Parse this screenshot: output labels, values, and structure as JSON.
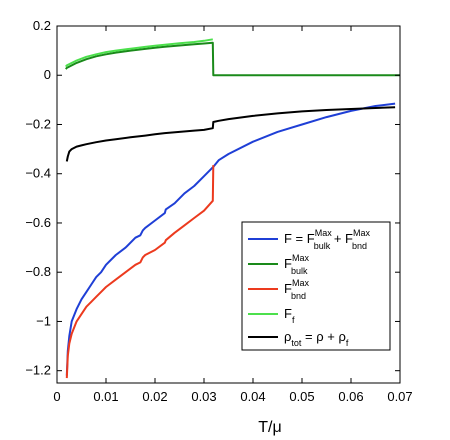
{
  "chart_data": {
    "type": "line",
    "xlabel": "T/μ",
    "ylabel": "",
    "xlim": [
      0,
      0.07
    ],
    "ylim": [
      -1.25,
      0.2
    ],
    "x_ticks": [
      "0",
      "0.01",
      "0.02",
      "0.03",
      "0.04",
      "0.05",
      "0.06",
      "0.07"
    ],
    "x_tick_values": [
      0,
      0.01,
      0.02,
      0.03,
      0.04,
      0.05,
      0.06,
      0.07
    ],
    "y_ticks": [
      "0.2",
      "0",
      "−0.2",
      "−0.4",
      "−0.6",
      "−0.8",
      "−1",
      "−1.2"
    ],
    "y_tick_values": [
      0.2,
      0,
      -0.2,
      -0.4,
      -0.6,
      -0.8,
      -1,
      -1.2
    ],
    "grid": false,
    "legend_position": "bottom-right",
    "series": [
      {
        "name": "F = F^Max_bulk + F^Max_bnd",
        "color": "#1f3fd6",
        "x": [
          0.002,
          0.0022,
          0.0025,
          0.003,
          0.004,
          0.005,
          0.006,
          0.007,
          0.008,
          0.009,
          0.01,
          0.012,
          0.014,
          0.016,
          0.017,
          0.0175,
          0.018,
          0.02,
          0.022,
          0.0222,
          0.024,
          0.026,
          0.028,
          0.03,
          0.032,
          0.033,
          0.035,
          0.04,
          0.045,
          0.05,
          0.055,
          0.06,
          0.065,
          0.069
        ],
        "y": [
          -1.22,
          -1.12,
          -1.06,
          -1.0,
          -0.95,
          -0.91,
          -0.88,
          -0.85,
          -0.82,
          -0.8,
          -0.77,
          -0.73,
          -0.7,
          -0.66,
          -0.65,
          -0.63,
          -0.62,
          -0.59,
          -0.56,
          -0.545,
          -0.52,
          -0.48,
          -0.45,
          -0.41,
          -0.37,
          -0.345,
          -0.32,
          -0.27,
          -0.23,
          -0.2,
          -0.17,
          -0.145,
          -0.125,
          -0.115
        ]
      },
      {
        "name": "F^Max_bulk",
        "color": "#1a8a1a",
        "x": [
          0.0018,
          0.002,
          0.004,
          0.006,
          0.008,
          0.01,
          0.012,
          0.015,
          0.018,
          0.02,
          0.022,
          0.025,
          0.028,
          0.03,
          0.0318,
          0.0319,
          0.033,
          0.04,
          0.05,
          0.06,
          0.07
        ],
        "y": [
          0.025,
          0.03,
          0.05,
          0.065,
          0.077,
          0.085,
          0.092,
          0.1,
          0.107,
          0.112,
          0.116,
          0.121,
          0.126,
          0.129,
          0.132,
          0.0,
          0.0,
          0.0,
          0.0,
          0.0,
          0.0
        ]
      },
      {
        "name": "F^Max_bnd",
        "color": "#ec3a1e",
        "x": [
          0.002,
          0.0022,
          0.0025,
          0.003,
          0.004,
          0.005,
          0.006,
          0.007,
          0.008,
          0.009,
          0.01,
          0.012,
          0.014,
          0.016,
          0.017,
          0.0175,
          0.018,
          0.02,
          0.022,
          0.0222,
          0.024,
          0.026,
          0.028,
          0.03,
          0.0318,
          0.0319
        ],
        "y": [
          -1.23,
          -1.14,
          -1.09,
          -1.05,
          -1.0,
          -0.97,
          -0.94,
          -0.92,
          -0.9,
          -0.88,
          -0.86,
          -0.83,
          -0.8,
          -0.77,
          -0.76,
          -0.74,
          -0.73,
          -0.71,
          -0.68,
          -0.67,
          -0.64,
          -0.61,
          -0.58,
          -0.55,
          -0.51,
          -0.365
        ]
      },
      {
        "name": "F_f",
        "color": "#4ce04c",
        "x": [
          0.0018,
          0.002,
          0.004,
          0.006,
          0.008,
          0.01,
          0.012,
          0.015,
          0.018,
          0.02,
          0.022,
          0.025,
          0.028,
          0.03,
          0.0318
        ],
        "y": [
          0.035,
          0.04,
          0.06,
          0.075,
          0.085,
          0.094,
          0.1,
          0.108,
          0.115,
          0.12,
          0.124,
          0.13,
          0.135,
          0.14,
          0.146
        ]
      },
      {
        "name": "ρ_tot = ρ + ρ_f",
        "color": "#000000",
        "x": [
          0.002,
          0.0022,
          0.0025,
          0.003,
          0.004,
          0.005,
          0.006,
          0.008,
          0.01,
          0.012,
          0.015,
          0.018,
          0.02,
          0.022,
          0.025,
          0.028,
          0.03,
          0.0318,
          0.0319,
          0.033,
          0.035,
          0.04,
          0.045,
          0.05,
          0.055,
          0.06,
          0.065,
          0.069
        ],
        "y": [
          -0.35,
          -0.33,
          -0.31,
          -0.3,
          -0.29,
          -0.285,
          -0.28,
          -0.272,
          -0.265,
          -0.26,
          -0.252,
          -0.245,
          -0.24,
          -0.235,
          -0.23,
          -0.225,
          -0.222,
          -0.215,
          -0.19,
          -0.185,
          -0.178,
          -0.165,
          -0.155,
          -0.147,
          -0.141,
          -0.137,
          -0.133,
          -0.13
        ]
      }
    ]
  }
}
